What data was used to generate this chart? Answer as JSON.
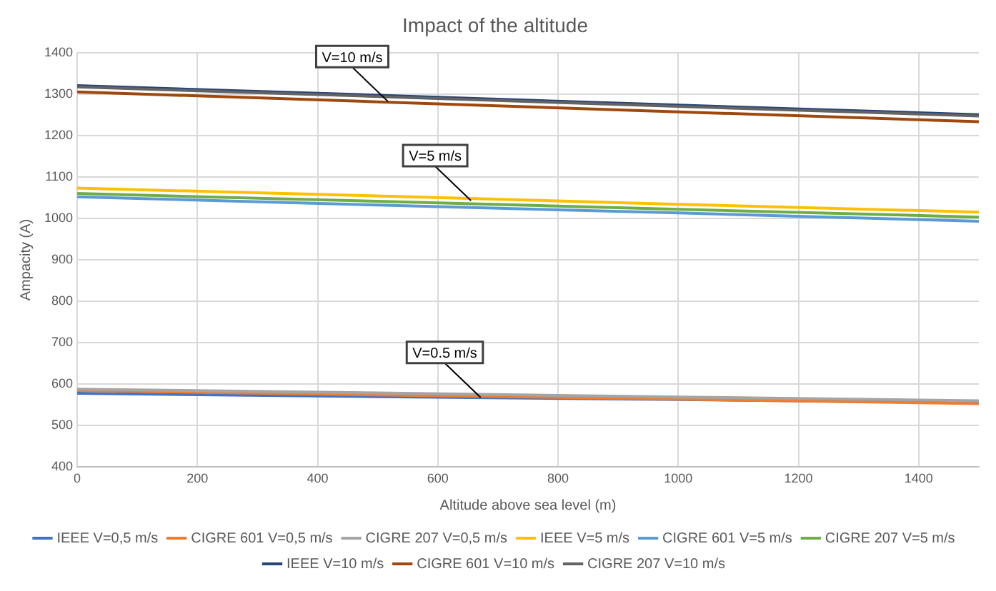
{
  "chart_data": {
    "type": "line",
    "title": "Impact of the altitude",
    "xlabel": "Altitude above sea level (m)",
    "ylabel": "Ampacity (A)",
    "x": [
      0,
      500,
      1000,
      1500
    ],
    "series": [
      {
        "name": "IEEE V=0,5 m/s",
        "color": "#4472c4",
        "values": [
          578,
          570,
          563,
          555
        ]
      },
      {
        "name": "CIGRE 601 V=0,5 m/s",
        "color": "#ed7d31",
        "values": [
          585,
          574,
          564,
          553
        ]
      },
      {
        "name": "CIGRE 207 V=0,5 m/s",
        "color": "#a5a5a5",
        "values": [
          588,
          579,
          569,
          560
        ]
      },
      {
        "name": "IEEE V=5 m/s",
        "color": "#ffc000",
        "values": [
          1073,
          1054,
          1034,
          1015
        ]
      },
      {
        "name": "CIGRE 601 V=5 m/s",
        "color": "#5b9bd5",
        "values": [
          1052,
          1032,
          1013,
          993
        ]
      },
      {
        "name": "CIGRE 207 V=5 m/s",
        "color": "#70ad47",
        "values": [
          1060,
          1041,
          1022,
          1003
        ]
      },
      {
        "name": "IEEE V=10 m/s",
        "color": "#264478",
        "values": [
          1320,
          1297,
          1273,
          1250
        ]
      },
      {
        "name": "CIGRE 601 V=10 m/s",
        "color": "#9e480e",
        "values": [
          1305,
          1281,
          1257,
          1233
        ]
      },
      {
        "name": "CIGRE 207 V=10 m/s",
        "color": "#636363",
        "values": [
          1317,
          1294,
          1270,
          1247
        ]
      }
    ],
    "xlim": [
      0,
      1500
    ],
    "xticks": [
      0,
      200,
      400,
      600,
      800,
      1000,
      1200,
      1400
    ],
    "ylim": [
      400,
      1400
    ],
    "yticks": [
      400,
      500,
      600,
      700,
      800,
      900,
      1000,
      1100,
      1200,
      1300,
      1400
    ],
    "grid": true,
    "legend": "bottom",
    "marker": "none",
    "line_style": "solid",
    "annotations": [
      {
        "text": "V=10 m/s",
        "x": 517,
        "y": 1282
      },
      {
        "text": "V=5 m/s",
        "x": 655,
        "y": 1043
      },
      {
        "text": "V=0.5 m/s",
        "x": 671,
        "y": 568
      }
    ]
  }
}
